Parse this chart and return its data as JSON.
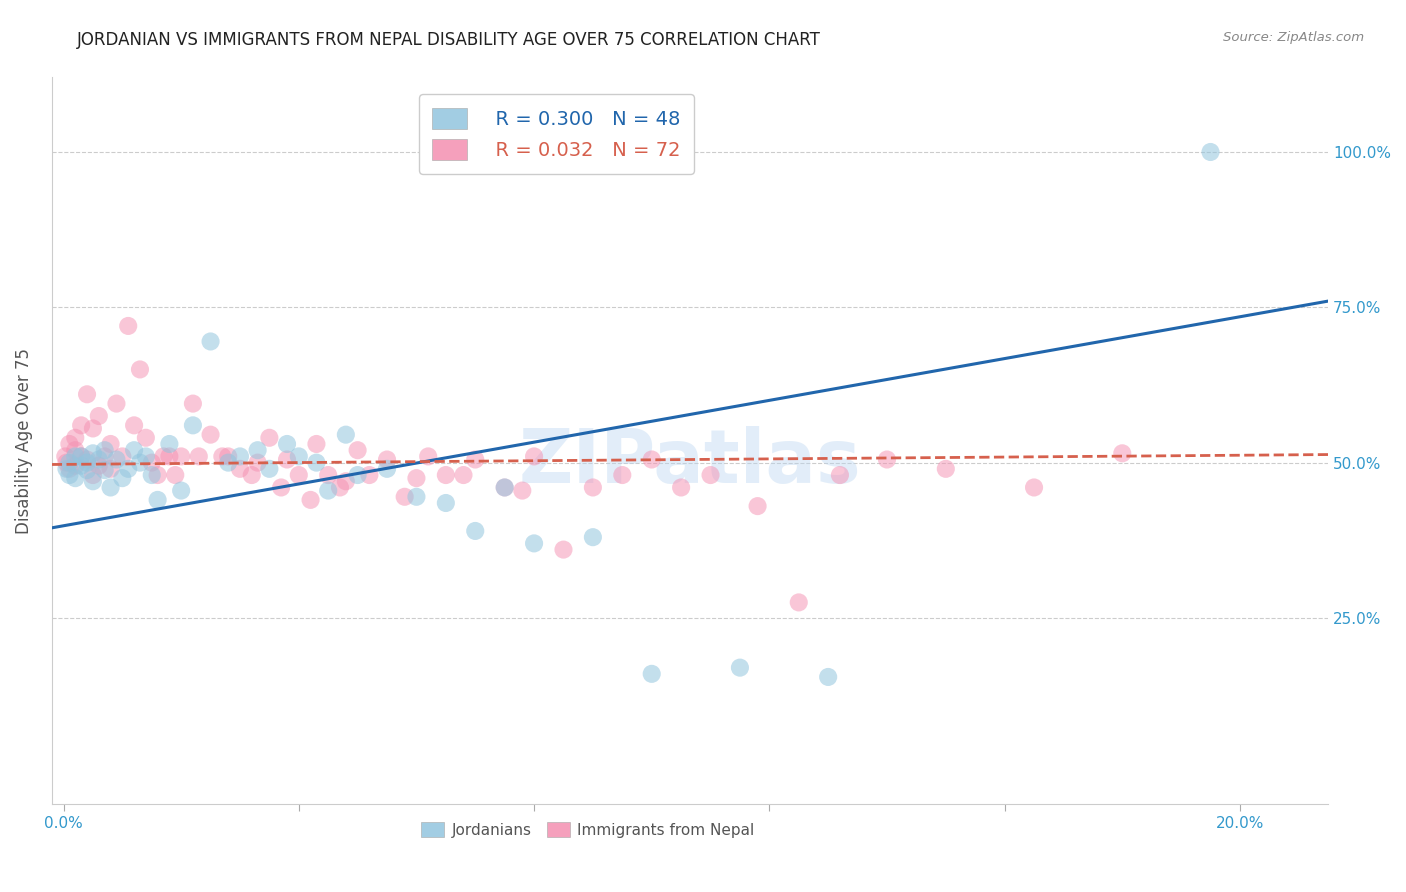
{
  "title": "JORDANIAN VS IMMIGRANTS FROM NEPAL DISABILITY AGE OVER 75 CORRELATION CHART",
  "source": "Source: ZipAtlas.com",
  "ylabel_label": "Disability Age Over 75",
  "y_tick_labels": [
    "100.0%",
    "75.0%",
    "50.0%",
    "25.0%"
  ],
  "y_ticks": [
    1.0,
    0.75,
    0.5,
    0.25
  ],
  "xlim": [
    -0.002,
    0.215
  ],
  "ylim": [
    -0.05,
    1.12
  ],
  "legend_r1": "R = 0.300",
  "legend_n1": "N = 48",
  "legend_r2": "R = 0.032",
  "legend_n2": "N = 72",
  "blue_color": "#92c5de",
  "blue_line_color": "#2166ac",
  "pink_color": "#f4a582",
  "pink_color_scatter": "#f48fb1",
  "pink_line_color": "#d6604d",
  "watermark": "ZIPatlas",
  "title_color": "#222222",
  "axis_label_color": "#555555",
  "tick_color": "#3399cc",
  "grid_color": "#cccccc",
  "jordanians_x": [
    0.0005,
    0.001,
    0.001,
    0.002,
    0.002,
    0.003,
    0.003,
    0.004,
    0.004,
    0.005,
    0.005,
    0.006,
    0.007,
    0.007,
    0.008,
    0.009,
    0.01,
    0.011,
    0.012,
    0.013,
    0.014,
    0.015,
    0.016,
    0.018,
    0.02,
    0.022,
    0.025,
    0.028,
    0.03,
    0.033,
    0.035,
    0.038,
    0.04,
    0.043,
    0.045,
    0.048,
    0.05,
    0.055,
    0.06,
    0.065,
    0.07,
    0.075,
    0.08,
    0.09,
    0.1,
    0.115,
    0.13,
    0.195
  ],
  "jordanians_y": [
    0.49,
    0.5,
    0.48,
    0.51,
    0.475,
    0.495,
    0.51,
    0.5,
    0.488,
    0.515,
    0.47,
    0.505,
    0.488,
    0.52,
    0.46,
    0.505,
    0.475,
    0.49,
    0.52,
    0.5,
    0.51,
    0.48,
    0.44,
    0.53,
    0.455,
    0.56,
    0.695,
    0.5,
    0.51,
    0.52,
    0.49,
    0.53,
    0.51,
    0.5,
    0.455,
    0.545,
    0.48,
    0.49,
    0.445,
    0.435,
    0.39,
    0.46,
    0.37,
    0.38,
    0.16,
    0.17,
    0.155,
    1.0
  ],
  "nepal_x": [
    0.0003,
    0.0005,
    0.001,
    0.001,
    0.002,
    0.002,
    0.002,
    0.003,
    0.003,
    0.004,
    0.004,
    0.005,
    0.005,
    0.006,
    0.006,
    0.007,
    0.008,
    0.008,
    0.009,
    0.01,
    0.011,
    0.012,
    0.013,
    0.014,
    0.015,
    0.016,
    0.017,
    0.018,
    0.019,
    0.02,
    0.022,
    0.023,
    0.025,
    0.027,
    0.028,
    0.03,
    0.032,
    0.033,
    0.035,
    0.037,
    0.038,
    0.04,
    0.042,
    0.043,
    0.045,
    0.047,
    0.048,
    0.05,
    0.052,
    0.055,
    0.058,
    0.06,
    0.062,
    0.065,
    0.068,
    0.07,
    0.075,
    0.078,
    0.08,
    0.085,
    0.09,
    0.095,
    0.1,
    0.105,
    0.11,
    0.118,
    0.125,
    0.132,
    0.14,
    0.15,
    0.165,
    0.18
  ],
  "nepal_y": [
    0.51,
    0.5,
    0.53,
    0.49,
    0.52,
    0.54,
    0.495,
    0.51,
    0.56,
    0.505,
    0.61,
    0.48,
    0.555,
    0.495,
    0.575,
    0.51,
    0.53,
    0.49,
    0.595,
    0.51,
    0.72,
    0.56,
    0.65,
    0.54,
    0.5,
    0.48,
    0.51,
    0.51,
    0.48,
    0.51,
    0.595,
    0.51,
    0.545,
    0.51,
    0.51,
    0.49,
    0.48,
    0.5,
    0.54,
    0.46,
    0.505,
    0.48,
    0.44,
    0.53,
    0.48,
    0.46,
    0.47,
    0.52,
    0.48,
    0.505,
    0.445,
    0.475,
    0.51,
    0.48,
    0.48,
    0.505,
    0.46,
    0.455,
    0.51,
    0.36,
    0.46,
    0.48,
    0.505,
    0.46,
    0.48,
    0.43,
    0.275,
    0.48,
    0.505,
    0.49,
    0.46,
    0.515
  ],
  "blue_trend_x": [
    -0.002,
    0.215
  ],
  "blue_trend_y": [
    0.395,
    0.76
  ],
  "pink_trend_x": [
    -0.002,
    0.215
  ],
  "pink_trend_y": [
    0.497,
    0.513
  ]
}
